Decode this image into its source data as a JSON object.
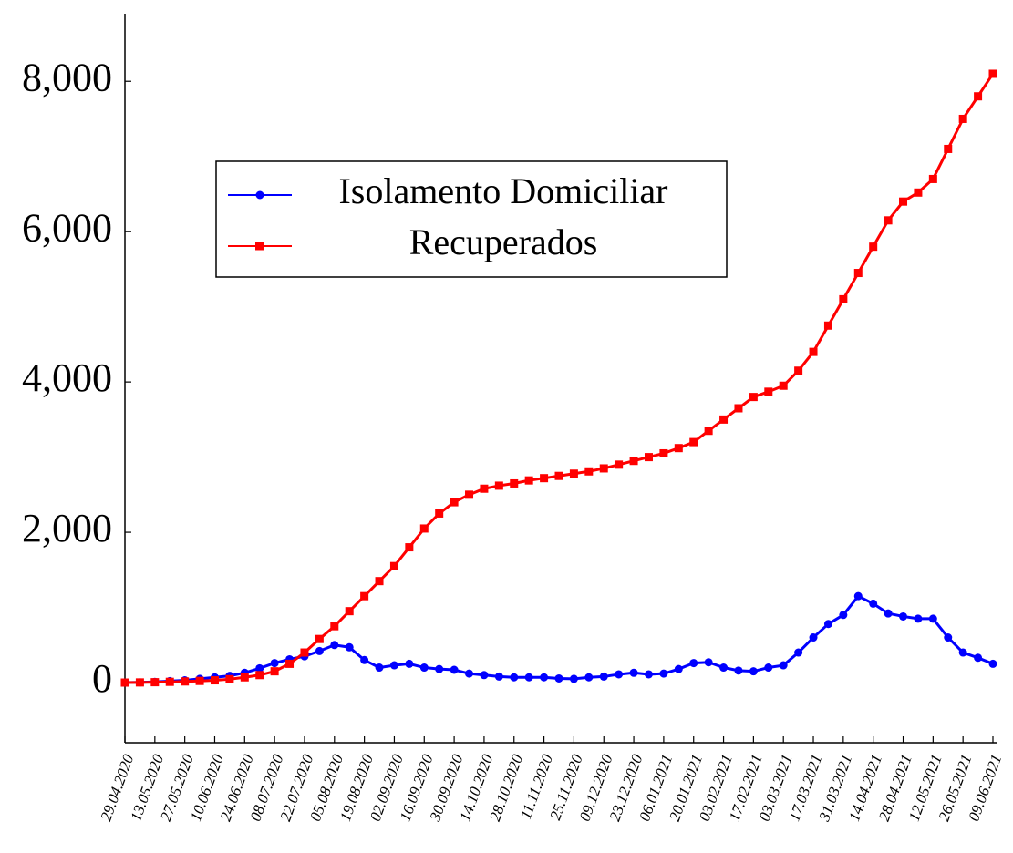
{
  "chart_data": {
    "type": "line",
    "categories": [
      "29.04.2020",
      null,
      "13.05.2020",
      null,
      "27.05.2020",
      null,
      "10.06.2020",
      null,
      "24.06.2020",
      null,
      "08.07.2020",
      null,
      "22.07.2020",
      null,
      "05.08.2020",
      null,
      "19.08.2020",
      null,
      "02.09.2020",
      null,
      "16.09.2020",
      null,
      "30.09.2020",
      null,
      "14.10.2020",
      null,
      "28.10.2020",
      null,
      "11.11.2020",
      null,
      "25.11.2020",
      null,
      "09.12.2020",
      null,
      "23.12.2020",
      null,
      "06.01.2021",
      null,
      "20.01.2021",
      null,
      "03.02.2021",
      null,
      "17.02.2021",
      null,
      "03.03.2021",
      null,
      "17.03.2021",
      null,
      "31.03.2021",
      null,
      "14.04.2021",
      null,
      "28.04.2021",
      null,
      "12.05.2021",
      null,
      "26.05.2021",
      null,
      "09.06.2021"
    ],
    "series": [
      {
        "name": "Isolamento Domiciliar",
        "color": "#0000ff",
        "marker": "circle",
        "values": [
          0,
          3,
          10,
          20,
          30,
          50,
          70,
          90,
          130,
          190,
          260,
          310,
          350,
          420,
          500,
          470,
          300,
          200,
          230,
          250,
          200,
          180,
          170,
          120,
          100,
          80,
          70,
          70,
          70,
          55,
          50,
          70,
          80,
          110,
          130,
          110,
          120,
          180,
          260,
          270,
          200,
          160,
          150,
          200,
          230,
          400,
          600,
          780,
          900,
          1150,
          1050,
          920,
          880,
          850,
          850,
          600,
          400,
          330,
          250
        ]
      },
      {
        "name": "Recuperados",
        "color": "#ff0000",
        "marker": "square",
        "values": [
          0,
          2,
          5,
          10,
          15,
          22,
          30,
          45,
          70,
          100,
          150,
          250,
          400,
          580,
          750,
          950,
          1150,
          1350,
          1550,
          1800,
          2050,
          2250,
          2400,
          2500,
          2580,
          2620,
          2650,
          2690,
          2720,
          2750,
          2780,
          2810,
          2850,
          2900,
          2950,
          3000,
          3050,
          3120,
          3200,
          3350,
          3500,
          3650,
          3800,
          3870,
          3950,
          4150,
          4400,
          4750,
          5100,
          5450,
          5800,
          6150,
          6400,
          6520,
          6700,
          7100,
          7500,
          7800,
          8100
        ]
      }
    ],
    "ylim": [
      -800,
      8900
    ],
    "yticks": [
      0,
      {
        "value": 2000,
        "label": "2,000"
      },
      {
        "value": 4000,
        "label": "4,000"
      },
      {
        "value": 6000,
        "label": "6,000"
      },
      {
        "value": 8000,
        "label": "8,000"
      }
    ],
    "grid": false,
    "legend": "upper left"
  }
}
